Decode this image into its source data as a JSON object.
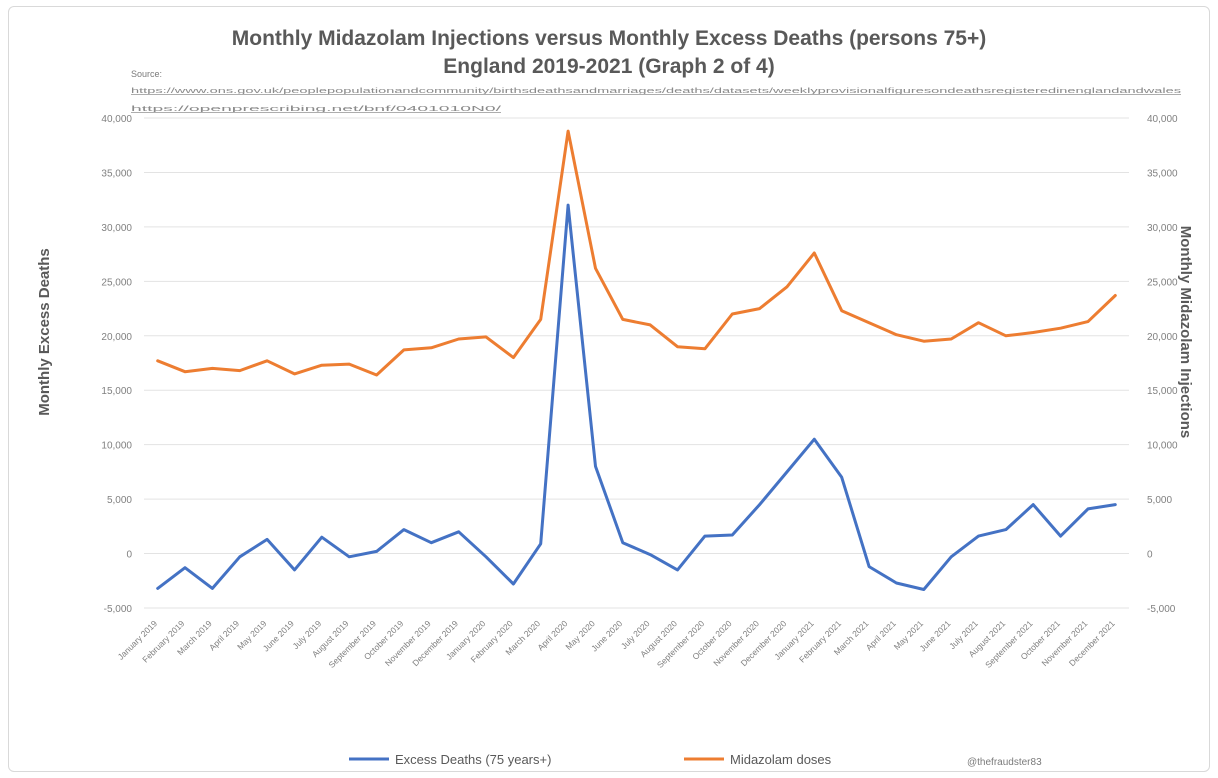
{
  "chart_data": {
    "type": "line",
    "title": "Monthly Midazolam Injections versus Monthly Excess Deaths (persons 75+)",
    "subtitle": "England 2019-2021 (Graph 2 of 4)",
    "source_label": "Source:",
    "source_links": [
      "https://www.ons.gov.uk/peoplepopulationandcommunity/birthsdeathsandmarriages/deaths/datasets/weeklyprovisionalfiguresondeathsregisteredinenglandandwales",
      "https://openprescribing.net/bnf/0401010N0/"
    ],
    "ylabel_left": "Monthly Excess Deaths",
    "ylabel_right": "Monthly Midazolam Injections",
    "ylim_left": [
      -5000,
      40000
    ],
    "ylim_right": [
      -5000,
      40000
    ],
    "y_ticks_left": [
      "40,000",
      "35,000",
      "30,000",
      "25,000",
      "20,000",
      "15,000",
      "10,000",
      "5,000",
      "0",
      "-5,000"
    ],
    "y_ticks_right": [
      "40,000",
      "35,000",
      "30,000",
      "25,000",
      "20,000",
      "15,000",
      "10,000",
      "5,000",
      "0",
      "-5,000"
    ],
    "grid": true,
    "legend_position": "bottom",
    "x": [
      "January 2019",
      "February 2019",
      "March 2019",
      "April 2019",
      "May 2019",
      "June 2019",
      "July 2019",
      "August 2019",
      "September 2019",
      "October 2019",
      "November 2019",
      "December 2019",
      "January 2020",
      "February 2020",
      "March 2020",
      "April 2020",
      "May 2020",
      "June 2020",
      "July 2020",
      "August 2020",
      "September 2020",
      "October 2020",
      "November 2020",
      "December 2020",
      "January 2021",
      "February 2021",
      "March 2021",
      "April 2021",
      "May 2021",
      "June 2021",
      "July 2021",
      "August 2021",
      "September 2021",
      "October 2021",
      "November 2021",
      "December 2021"
    ],
    "series": [
      {
        "name": "Excess Deaths (75 years+)",
        "color": "#4472c4",
        "axis": "left",
        "values": [
          -3200,
          -1300,
          -3200,
          -300,
          1300,
          -1500,
          1500,
          -300,
          200,
          2200,
          1000,
          2000,
          -300,
          -2800,
          900,
          32000,
          8000,
          1000,
          -100,
          -1500,
          1600,
          1700,
          4500,
          7500,
          10500,
          7000,
          -1200,
          -2700,
          -3300,
          -300,
          1600,
          2200,
          4500,
          1600,
          4100,
          4500
        ]
      },
      {
        "name": "Midazolam doses",
        "color": "#ed7d31",
        "axis": "right",
        "values": [
          17700,
          16700,
          17000,
          16800,
          17700,
          16500,
          17300,
          17400,
          16400,
          18700,
          18900,
          19700,
          19900,
          18000,
          21500,
          38800,
          26200,
          21500,
          21000,
          19000,
          18800,
          22000,
          22500,
          24500,
          27600,
          22300,
          21200,
          20100,
          19500,
          19700,
          21200,
          20000,
          20300,
          20700,
          21300,
          23700
        ]
      }
    ],
    "credit": "@thefraudster83"
  }
}
